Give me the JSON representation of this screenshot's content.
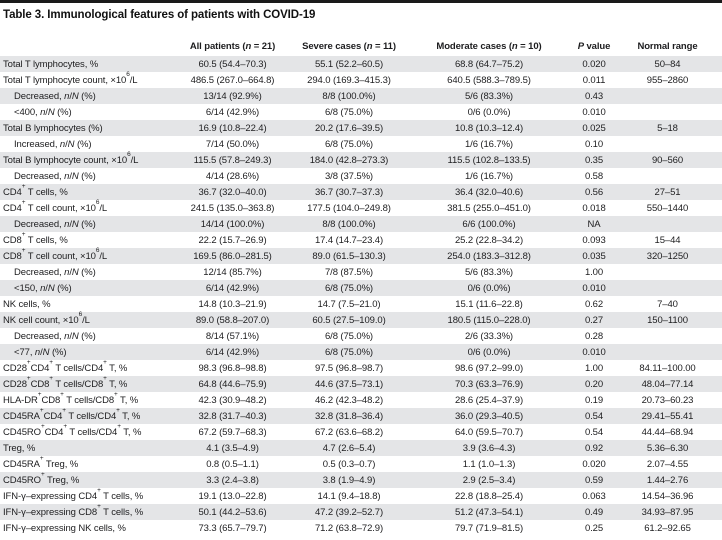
{
  "colors": {
    "top_rule": "#1a1a1a",
    "stripe": "#e4e5e7",
    "text": "#1d1d1f"
  },
  "table": {
    "title": "Table 3. Immunological features of patients with COVID-19",
    "columns": [
      {
        "key": "label",
        "label_html": ""
      },
      {
        "key": "all-patients",
        "label_html": "All patients (<i>n</i> = 21)"
      },
      {
        "key": "severe-cases",
        "label_html": "Severe cases (<i>n</i> = 11)"
      },
      {
        "key": "moderate-cases",
        "label_html": "Moderate cases (<i>n</i> = 10)"
      },
      {
        "key": "p-value",
        "label_html": "<i>P</i> value"
      },
      {
        "key": "normal-range",
        "label_html": "Normal range"
      }
    ],
    "rows": [
      {
        "label_html": "Total T lymphocytes, %",
        "indent": false,
        "values": [
          "60.5 (54.4–70.3)",
          "55.1 (52.2–60.5)",
          "68.8 (64.7–75.2)",
          "0.020",
          "50–84"
        ]
      },
      {
        "label_html": "Total T lymphocyte count, ×10<sup>6</sup>/L",
        "indent": false,
        "values": [
          "486.5 (267.0–664.8)",
          "294.0 (169.3–415.3)",
          "640.5 (588.3–789.5)",
          "0.011",
          "955–2860"
        ]
      },
      {
        "label_html": "Decreased, <i>n</i>/<i>N</i> (%)",
        "indent": true,
        "values": [
          "13/14 (92.9%)",
          "8/8 (100.0%)",
          "5/6 (83.3%)",
          "0.43",
          ""
        ]
      },
      {
        "label_html": "&lt;400, <i>n</i>/<i>N</i> (%)",
        "indent": true,
        "values": [
          "6/14 (42.9%)",
          "6/8 (75.0%)",
          "0/6 (0.0%)",
          "0.010",
          ""
        ]
      },
      {
        "label_html": "Total B lymphocytes (%)",
        "indent": false,
        "values": [
          "16.9 (10.8–22.4)",
          "20.2 (17.6–39.5)",
          "10.8 (10.3–12.4)",
          "0.025",
          "5–18"
        ]
      },
      {
        "label_html": "Increased, <i>n</i>/<i>N</i> (%)",
        "indent": true,
        "values": [
          "7/14 (50.0%)",
          "6/8 (75.0%)",
          "1/6 (16.7%)",
          "0.10",
          ""
        ]
      },
      {
        "label_html": "Total B lymphocyte count, ×10<sup>6</sup>/L",
        "indent": false,
        "values": [
          "115.5 (57.8–249.3)",
          "184.0 (42.8–273.3)",
          "115.5 (102.8–133.5)",
          "0.35",
          "90–560"
        ]
      },
      {
        "label_html": "Decreased, <i>n</i>/<i>N</i> (%)",
        "indent": true,
        "values": [
          "4/14 (28.6%)",
          "3/8 (37.5%)",
          "1/6 (16.7%)",
          "0.58",
          ""
        ]
      },
      {
        "label_html": "CD4<sup>+</sup> T cells, %",
        "indent": false,
        "values": [
          "36.7 (32.0–40.0)",
          "36.7 (30.7–37.3)",
          "36.4 (32.0–40.6)",
          "0.56",
          "27–51"
        ]
      },
      {
        "label_html": "CD4<sup>+</sup> T cell count, ×10<sup>6</sup>/L",
        "indent": false,
        "values": [
          "241.5 (135.0–363.8)",
          "177.5 (104.0–249.8)",
          "381.5 (255.0–451.0)",
          "0.018",
          "550–1440"
        ]
      },
      {
        "label_html": "Decreased, <i>n</i>/<i>N</i> (%)",
        "indent": true,
        "values": [
          "14/14 (100.0%)",
          "8/8 (100.0%)",
          "6/6 (100.0%)",
          "NA",
          ""
        ]
      },
      {
        "label_html": "CD8<sup>+</sup> T cells, %",
        "indent": false,
        "values": [
          "22.2 (15.7–26.9)",
          "17.4 (14.7–23.4)",
          "25.2 (22.8–34.2)",
          "0.093",
          "15–44"
        ]
      },
      {
        "label_html": "CD8<sup>+</sup> T cell count, ×10<sup>6</sup>/L",
        "indent": false,
        "values": [
          "169.5 (86.0–281.5)",
          "89.0 (61.5–130.3)",
          "254.0 (183.3–312.8)",
          "0.035",
          "320–1250"
        ]
      },
      {
        "label_html": "Decreased, <i>n</i>/<i>N</i> (%)",
        "indent": true,
        "values": [
          "12/14 (85.7%)",
          "7/8 (87.5%)",
          "5/6 (83.3%)",
          "1.00",
          ""
        ]
      },
      {
        "label_html": "&lt;150, <i>n</i>/<i>N</i> (%)",
        "indent": true,
        "values": [
          "6/14 (42.9%)",
          "6/8 (75.0%)",
          "0/6 (0.0%)",
          "0.010",
          ""
        ]
      },
      {
        "label_html": "NK cells, %",
        "indent": false,
        "values": [
          "14.8 (10.3–21.9)",
          "14.7 (7.5–21.0)",
          "15.1 (11.6–22.8)",
          "0.62",
          "7–40"
        ]
      },
      {
        "label_html": "NK cell count, ×10<sup>6</sup>/L",
        "indent": false,
        "values": [
          "89.0 (58.8–207.0)",
          "60.5 (27.5–109.0)",
          "180.5 (115.0–228.0)",
          "0.27",
          "150–1100"
        ]
      },
      {
        "label_html": "Decreased, <i>n</i>/<i>N</i> (%)",
        "indent": true,
        "values": [
          "8/14 (57.1%)",
          "6/8 (75.0%)",
          "2/6 (33.3%)",
          "0.28",
          ""
        ]
      },
      {
        "label_html": "&lt;77, <i>n</i>/<i>N</i> (%)",
        "indent": true,
        "values": [
          "6/14 (42.9%)",
          "6/8 (75.0%)",
          "0/6 (0.0%)",
          "0.010",
          ""
        ]
      },
      {
        "label_html": "CD28<sup>+</sup>CD4<sup>+</sup> T cells/CD4<sup>+</sup> T, %",
        "indent": false,
        "values": [
          "98.3 (96.8–98.8)",
          "97.5 (96.8–98.7)",
          "98.6 (97.2–99.0)",
          "1.00",
          "84.11–100.00"
        ]
      },
      {
        "label_html": "CD28<sup>+</sup>CD8<sup>+</sup> T cells/CD8<sup>+</sup> T, %",
        "indent": false,
        "values": [
          "64.8 (44.6–75.9)",
          "44.6 (37.5–73.1)",
          "70.3 (63.3–76.9)",
          "0.20",
          "48.04–77.14"
        ]
      },
      {
        "label_html": "HLA-DR<sup>+</sup>CD8<sup>+</sup> T cells/CD8<sup>+</sup> T, %",
        "indent": false,
        "values": [
          "42.3 (30.9–48.2)",
          "46.2 (42.3–48.2)",
          "28.6 (25.4–37.9)",
          "0.19",
          "20.73–60.23"
        ]
      },
      {
        "label_html": "CD45RA<sup>+</sup>CD4<sup>+</sup> T cells/CD4<sup>+</sup> T, %",
        "indent": false,
        "values": [
          "32.8 (31.7–40.3)",
          "32.8 (31.8–36.4)",
          "36.0 (29.3–40.5)",
          "0.54",
          "29.41–55.41"
        ]
      },
      {
        "label_html": "CD45RO<sup>+</sup>CD4<sup>+</sup> T cells/CD4<sup>+</sup> T, %",
        "indent": false,
        "values": [
          "67.2 (59.7–68.3)",
          "67.2 (63.6–68.2)",
          "64.0 (59.5–70.7)",
          "0.54",
          "44.44–68.94"
        ]
      },
      {
        "label_html": "Treg, %",
        "indent": false,
        "values": [
          "4.1 (3.5–4.9)",
          "4.7 (2.6–5.4)",
          "3.9 (3.6–4.3)",
          "0.92",
          "5.36–6.30"
        ]
      },
      {
        "label_html": "CD45RA<sup>+</sup> Treg, %",
        "indent": false,
        "values": [
          "0.8 (0.5–1.1)",
          "0.5 (0.3–0.7)",
          "1.1 (1.0–1.3)",
          "0.020",
          "2.07–4.55"
        ]
      },
      {
        "label_html": "CD45RO<sup>+</sup> Treg, %",
        "indent": false,
        "values": [
          "3.3 (2.4–3.8)",
          "3.8 (1.9–4.9)",
          "2.9 (2.5–3.4)",
          "0.59",
          "1.44–2.76"
        ]
      },
      {
        "label_html": "IFN-γ–expressing CD4<sup>+</sup> T cells, %",
        "indent": false,
        "values": [
          "19.1 (13.0–22.8)",
          "14.1 (9.4–18.8)",
          "22.8 (18.8–25.4)",
          "0.063",
          "14.54–36.96"
        ]
      },
      {
        "label_html": "IFN-γ–expressing CD8<sup>+</sup> T cells, %",
        "indent": false,
        "values": [
          "50.1 (44.2–53.6)",
          "47.2 (39.2–52.7)",
          "51.2 (47.3–54.1)",
          "0.49",
          "34.93–87.95"
        ]
      },
      {
        "label_html": "IFN-γ–expressing NK cells, %",
        "indent": false,
        "values": [
          "73.3 (65.7–79.7)",
          "71.2 (63.8–72.9)",
          "79.7 (71.9–81.5)",
          "0.25",
          "61.2–92.65"
        ]
      }
    ]
  }
}
